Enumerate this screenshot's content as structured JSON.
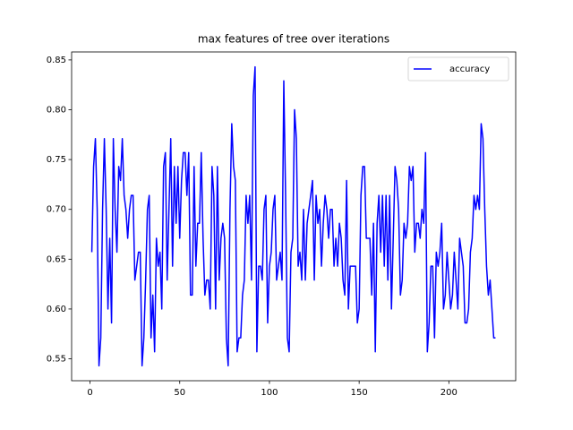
{
  "chart_data": {
    "type": "line",
    "title": "max features of tree over iterations",
    "x": [
      1,
      2,
      3,
      4,
      5,
      6,
      7,
      8,
      9,
      10,
      11,
      12,
      13,
      14,
      15,
      16,
      17,
      18,
      19,
      20,
      21,
      22,
      23,
      24,
      25,
      26,
      27,
      28,
      29,
      30,
      31,
      32,
      33,
      34,
      35,
      36,
      37,
      38,
      39,
      40,
      41,
      42,
      43,
      44,
      45,
      46,
      47,
      48,
      49,
      50,
      51,
      52,
      53,
      54,
      55,
      56,
      57,
      58,
      59,
      60,
      61,
      62,
      63,
      64,
      65,
      66,
      67,
      68,
      69,
      70,
      71,
      72,
      73,
      74,
      75,
      76,
      77,
      78,
      79,
      80,
      81,
      82,
      83,
      84,
      85,
      86,
      87,
      88,
      89,
      90,
      91,
      92,
      93,
      94,
      95,
      96,
      97,
      98,
      99,
      100,
      101,
      102,
      103,
      104,
      105,
      106,
      107,
      108,
      109,
      110,
      111,
      112,
      113,
      114,
      115,
      116,
      117,
      118,
      119,
      120,
      121,
      122,
      123,
      124,
      125,
      126,
      127,
      128,
      129,
      130,
      131,
      132,
      133,
      134,
      135,
      136,
      137,
      138,
      139,
      140,
      141,
      142,
      143,
      144,
      145,
      146,
      147,
      148,
      149,
      150,
      151,
      152,
      153,
      154,
      155,
      156,
      157,
      158,
      159,
      160,
      161,
      162,
      163,
      164,
      165,
      166,
      167,
      168,
      169,
      170,
      171,
      172,
      173,
      174,
      175,
      176,
      177,
      178,
      179,
      180,
      181,
      182,
      183,
      184,
      185,
      186,
      187,
      188,
      189,
      190,
      191,
      192,
      193,
      194,
      195,
      196,
      197,
      198,
      199,
      200,
      201,
      202,
      203,
      204,
      205,
      206,
      207,
      208,
      209,
      210,
      211,
      212,
      213,
      214,
      215,
      216,
      217,
      218,
      219,
      220,
      221,
      222,
      223,
      224,
      225,
      226
    ],
    "series": [
      {
        "name": "accuracy",
        "color": "#0000ff",
        "values": [
          0.657,
          0.743,
          0.771,
          0.7,
          0.543,
          0.571,
          0.7,
          0.771,
          0.7,
          0.6,
          0.671,
          0.586,
          0.771,
          0.7,
          0.657,
          0.743,
          0.729,
          0.771,
          0.714,
          0.7,
          0.671,
          0.7,
          0.714,
          0.714,
          0.629,
          0.643,
          0.657,
          0.657,
          0.543,
          0.571,
          0.629,
          0.7,
          0.714,
          0.571,
          0.614,
          0.557,
          0.671,
          0.643,
          0.657,
          0.6,
          0.743,
          0.757,
          0.629,
          0.7,
          0.771,
          0.643,
          0.743,
          0.686,
          0.743,
          0.671,
          0.729,
          0.757,
          0.757,
          0.714,
          0.757,
          0.614,
          0.614,
          0.743,
          0.643,
          0.686,
          0.686,
          0.757,
          0.671,
          0.614,
          0.629,
          0.629,
          0.6,
          0.743,
          0.714,
          0.6,
          0.743,
          0.629,
          0.671,
          0.686,
          0.671,
          0.571,
          0.543,
          0.7,
          0.786,
          0.743,
          0.729,
          0.557,
          0.571,
          0.571,
          0.614,
          0.629,
          0.714,
          0.686,
          0.714,
          0.629,
          0.814,
          0.843,
          0.557,
          0.643,
          0.643,
          0.629,
          0.7,
          0.714,
          0.586,
          0.643,
          0.657,
          0.7,
          0.714,
          0.629,
          0.643,
          0.657,
          0.629,
          0.829,
          0.714,
          0.571,
          0.557,
          0.657,
          0.671,
          0.8,
          0.771,
          0.643,
          0.657,
          0.629,
          0.7,
          0.629,
          0.686,
          0.7,
          0.714,
          0.729,
          0.629,
          0.714,
          0.686,
          0.7,
          0.643,
          0.686,
          0.714,
          0.7,
          0.671,
          0.7,
          0.7,
          0.643,
          0.671,
          0.643,
          0.686,
          0.671,
          0.629,
          0.614,
          0.729,
          0.6,
          0.643,
          0.643,
          0.643,
          0.643,
          0.586,
          0.6,
          0.714,
          0.743,
          0.743,
          0.671,
          0.671,
          0.671,
          0.614,
          0.686,
          0.557,
          0.686,
          0.714,
          0.657,
          0.714,
          0.643,
          0.714,
          0.629,
          0.714,
          0.6,
          0.671,
          0.743,
          0.729,
          0.7,
          0.614,
          0.629,
          0.686,
          0.671,
          0.686,
          0.743,
          0.729,
          0.743,
          0.657,
          0.686,
          0.686,
          0.671,
          0.7,
          0.686,
          0.757,
          0.557,
          0.586,
          0.643,
          0.643,
          0.571,
          0.657,
          0.643,
          0.657,
          0.686,
          0.6,
          0.614,
          0.657,
          0.629,
          0.6,
          0.614,
          0.657,
          0.629,
          0.6,
          0.671,
          0.657,
          0.643,
          0.586,
          0.586,
          0.6,
          0.657,
          0.671,
          0.714,
          0.7,
          0.714,
          0.7,
          0.786,
          0.771,
          0.7,
          0.643,
          0.614,
          0.629,
          0.6,
          0.571,
          0.571
        ]
      }
    ],
    "xlim": [
      -10.25,
      237.25
    ],
    "xticks": [
      0,
      50,
      100,
      150,
      200
    ],
    "ylim": [
      0.528,
      0.858
    ],
    "yticks": [
      0.55,
      {
        "value": 0.6,
        "label": "0.60"
      },
      0.65,
      {
        "value": 0.7,
        "label": "0.70"
      },
      0.75,
      {
        "value": 0.8,
        "label": "0.80"
      },
      0.85
    ],
    "legend": "upper right",
    "grid": false
  }
}
